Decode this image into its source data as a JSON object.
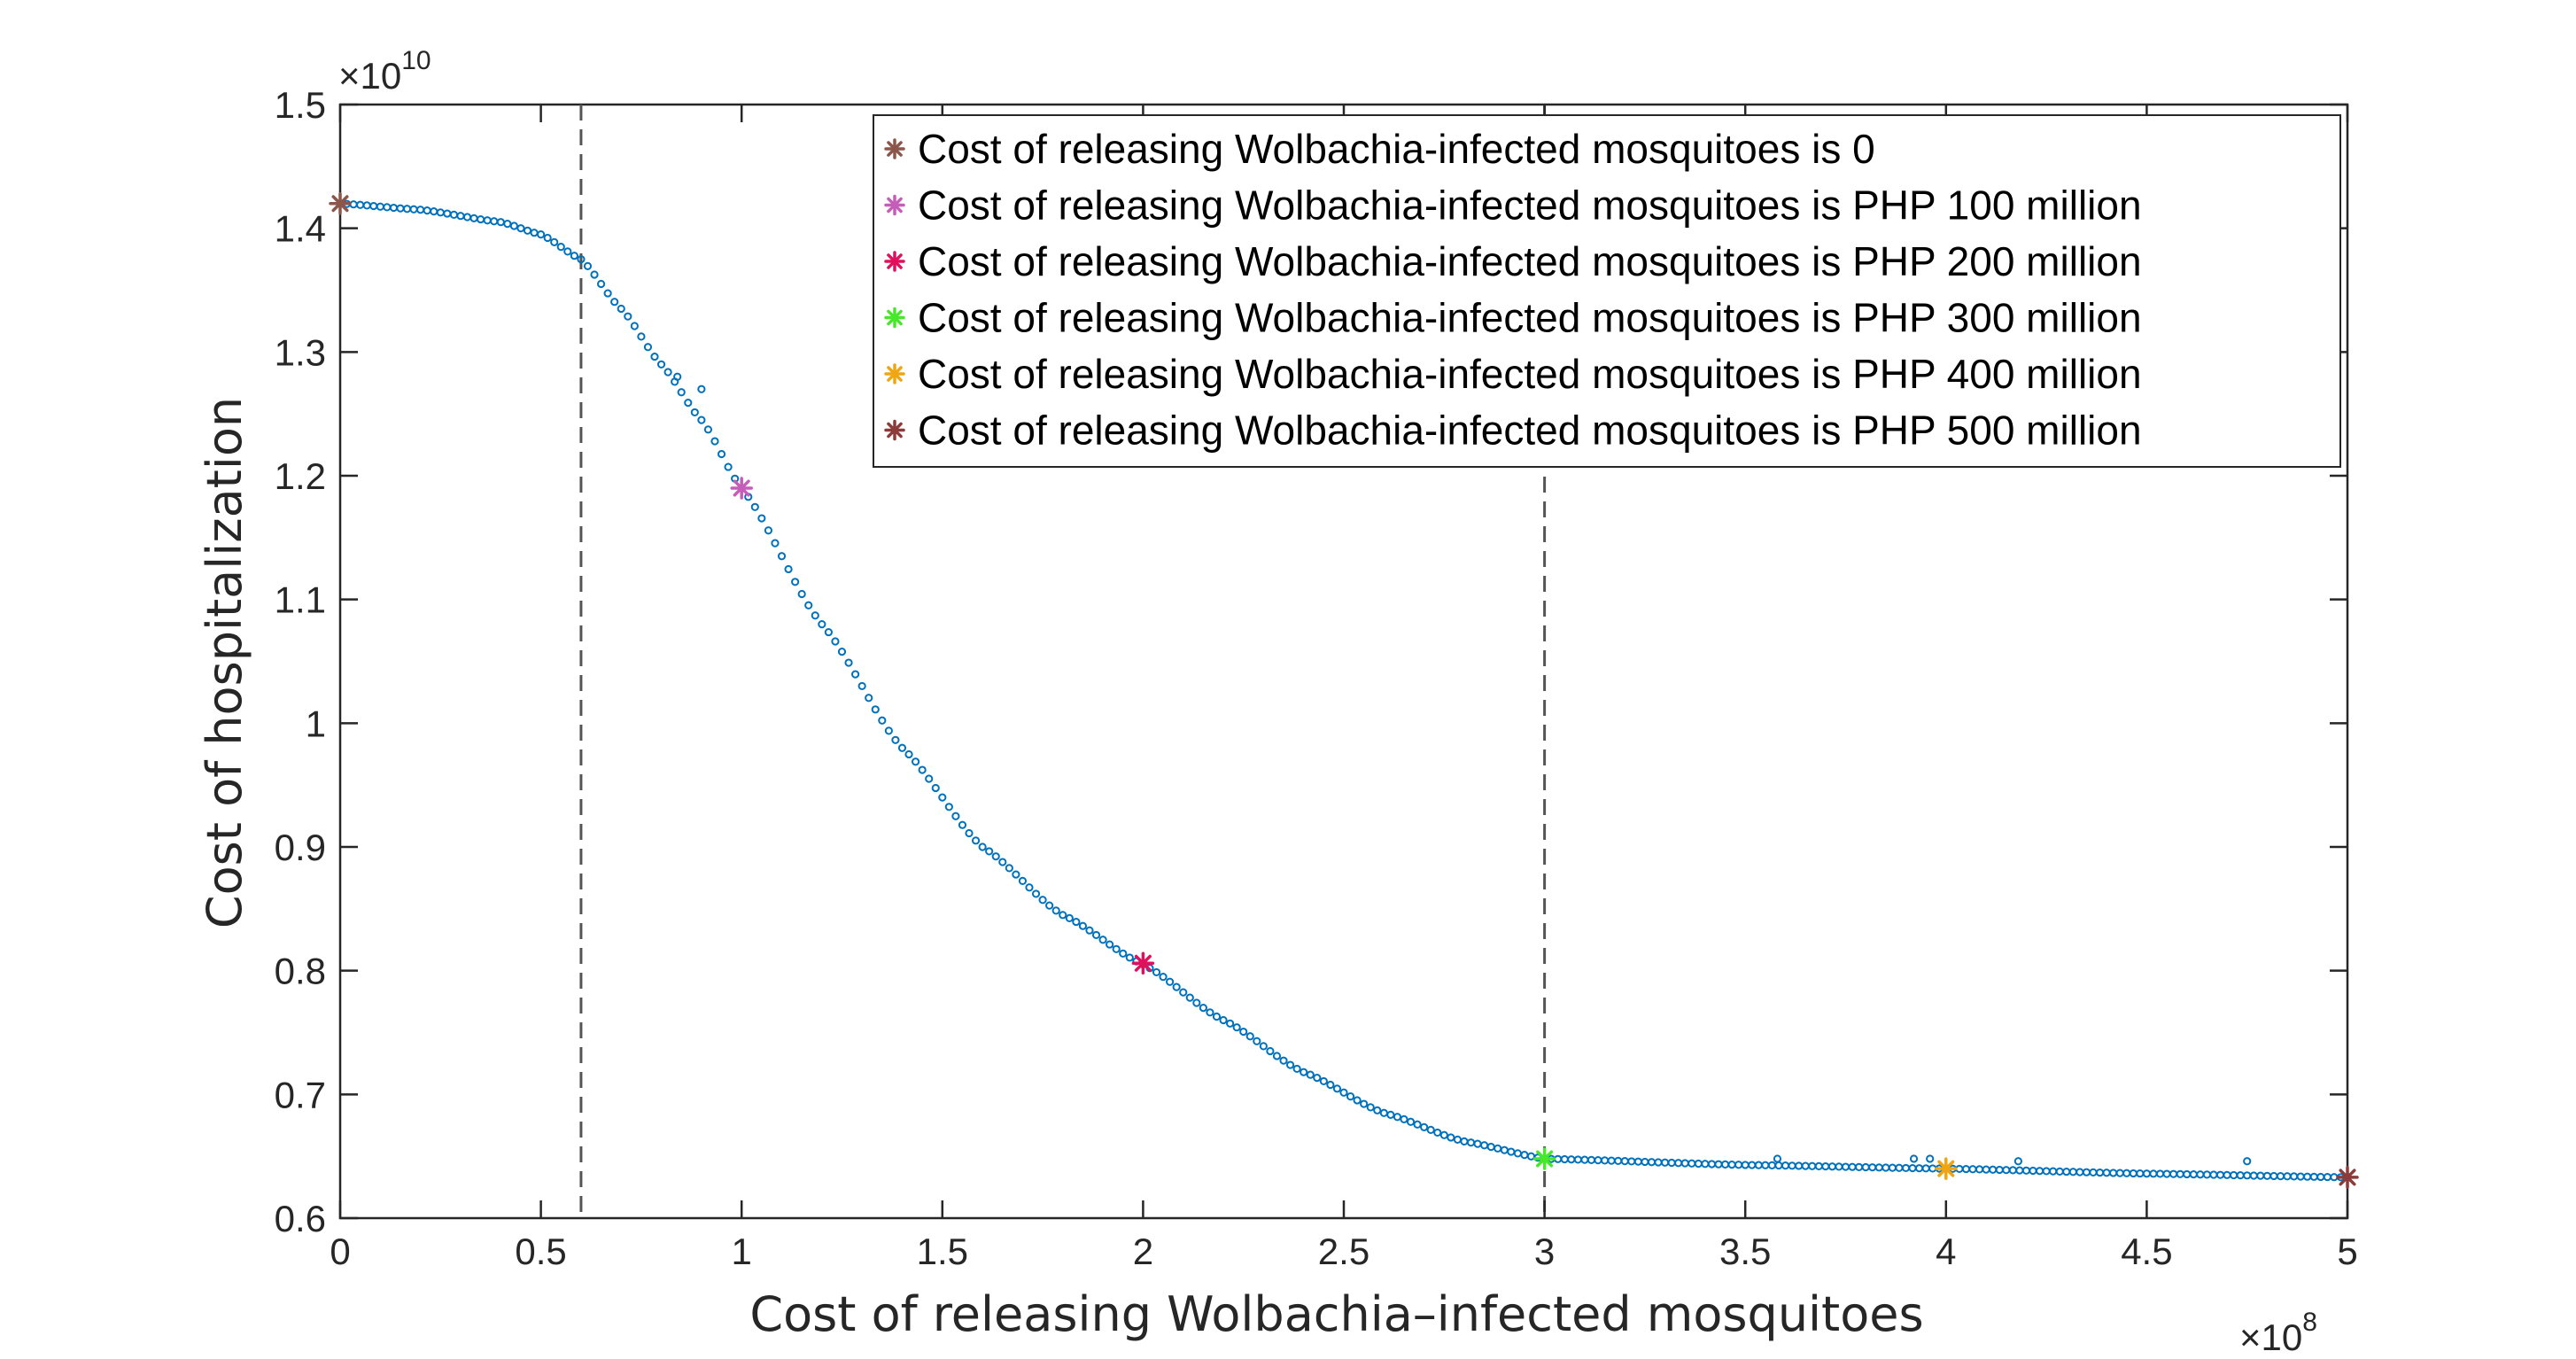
{
  "chart_data": {
    "type": "scatter",
    "xlabel": "Cost of releasing Wolbachia–infected mosquitoes",
    "ylabel": "Cost of hospitalization",
    "x_multiplier": {
      "base": "×10",
      "exponent": "8"
    },
    "y_multiplier": {
      "base": "×10",
      "exponent": "10"
    },
    "xlim": [
      0,
      5
    ],
    "ylim": [
      0.6,
      1.5
    ],
    "x_ticks": [
      "0",
      "0.5",
      "1",
      "1.5",
      "2",
      "2.5",
      "3",
      "3.5",
      "4",
      "4.5",
      "5"
    ],
    "y_ticks": [
      "0.6",
      "0.7",
      "0.8",
      "0.9",
      "1",
      "1.1",
      "1.2",
      "1.3",
      "1.4",
      "1.5"
    ],
    "grid": false,
    "legend_position": "top-right",
    "vertical_lines": [
      0.6,
      3.0
    ],
    "curve_color": "#0072BD",
    "curve_knots": {
      "x": [
        0,
        0.2,
        0.4,
        0.5,
        0.6,
        0.7,
        0.8,
        0.9,
        1.0,
        1.2,
        1.4,
        1.6,
        1.8,
        2.0,
        2.2,
        2.4,
        2.6,
        2.8,
        3.0,
        3.5,
        4.0,
        4.5,
        5.0
      ],
      "y": [
        1.42,
        1.415,
        1.405,
        1.395,
        1.375,
        1.335,
        1.29,
        1.245,
        1.19,
        1.08,
        0.98,
        0.9,
        0.845,
        0.805,
        0.76,
        0.718,
        0.685,
        0.662,
        0.648,
        0.643,
        0.64,
        0.636,
        0.633
      ]
    },
    "outliers": {
      "x": [
        0.84,
        0.9,
        3.58,
        3.92,
        3.96,
        4.18,
        4.75
      ],
      "y": [
        1.28,
        1.27,
        0.648,
        0.648,
        0.648,
        0.646,
        0.646
      ]
    },
    "series": [
      {
        "name": "Cost of releasing Wolbachia-infected mosquitoes is 0",
        "x": 0,
        "y": 1.42,
        "color": "#8C564B"
      },
      {
        "name": "Cost of releasing Wolbachia-infected mosquitoes is PHP 100 million",
        "x": 1,
        "y": 1.19,
        "color": "#C65DB8"
      },
      {
        "name": "Cost of releasing Wolbachia-infected mosquitoes is PHP 200 million",
        "x": 2,
        "y": 0.806,
        "color": "#E0105F"
      },
      {
        "name": "Cost of releasing Wolbachia-infected mosquitoes is PHP 300 million",
        "x": 3,
        "y": 0.648,
        "color": "#47E82A"
      },
      {
        "name": "Cost of releasing Wolbachia-infected mosquitoes is PHP 400 million",
        "x": 4,
        "y": 0.64,
        "color": "#F0A512"
      },
      {
        "name": "Cost of releasing Wolbachia-infected mosquitoes is PHP 500 million",
        "x": 5,
        "y": 0.633,
        "color": "#8C3B3B"
      }
    ]
  }
}
